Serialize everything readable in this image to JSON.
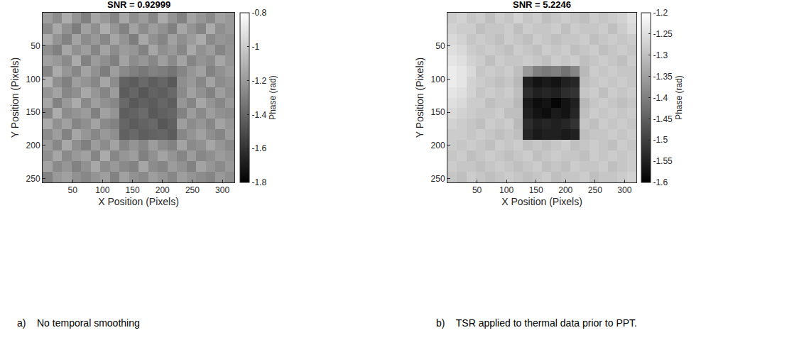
{
  "chart_data": [
    {
      "type": "heatmap",
      "title": "SNR = 0.92999",
      "caption": "a)    No temporal smoothing",
      "x_label": "X Position (Pixels)",
      "y_label": "Y Position (Pixels)",
      "colorbar_label": "Phase (rad)",
      "xlim": [
        0,
        320
      ],
      "xticks": [
        50,
        100,
        150,
        200,
        250,
        300
      ],
      "ylim": [
        256,
        0
      ],
      "yticks": [
        50,
        100,
        150,
        200,
        250
      ],
      "zlim": [
        -1.8,
        -0.8
      ],
      "zticks": [
        -1.8,
        -1.6,
        -1.4,
        -1.2,
        -1,
        -0.8
      ],
      "x": [
        8,
        24,
        40,
        56,
        72,
        88,
        104,
        120,
        136,
        152,
        168,
        184,
        200,
        216,
        232,
        248,
        264,
        280,
        296,
        312
      ],
      "y": [
        8,
        24,
        40,
        56,
        72,
        88,
        104,
        120,
        136,
        152,
        168,
        184,
        200,
        216,
        232,
        248
      ],
      "z": [
        [
          -1.18,
          -1.25,
          -1.12,
          -1.22,
          -1.3,
          -1.15,
          -1.2,
          -1.28,
          -1.14,
          -1.24,
          -1.19,
          -1.27,
          -1.13,
          -1.22,
          -1.29,
          -1.16,
          -1.21,
          -1.26,
          -1.17,
          -1.2
        ],
        [
          -1.26,
          -1.14,
          -1.23,
          -1.31,
          -1.17,
          -1.24,
          -1.12,
          -1.21,
          -1.29,
          -1.16,
          -1.25,
          -1.18,
          -1.23,
          -1.3,
          -1.15,
          -1.22,
          -1.28,
          -1.13,
          -1.24,
          -1.2
        ],
        [
          -1.12,
          -1.22,
          -1.29,
          -1.16,
          -1.25,
          -1.2,
          -1.27,
          -1.15,
          -1.22,
          -1.31,
          -1.14,
          -1.23,
          -1.28,
          -1.17,
          -1.24,
          -1.19,
          -1.13,
          -1.26,
          -1.21,
          -1.23
        ],
        [
          -1.24,
          -1.3,
          -1.15,
          -1.23,
          -1.18,
          -1.28,
          -1.16,
          -1.25,
          -1.19,
          -1.21,
          -1.29,
          -1.15,
          -1.24,
          -1.2,
          -1.27,
          -1.14,
          -1.23,
          -1.19,
          -1.28,
          -1.22
        ],
        [
          -1.17,
          -1.2,
          -1.26,
          -1.13,
          -1.29,
          -1.19,
          -1.24,
          -1.3,
          -1.16,
          -1.25,
          -1.21,
          -1.27,
          -1.18,
          -1.26,
          -1.16,
          -1.28,
          -1.22,
          -1.25,
          -1.15,
          -1.21
        ],
        [
          -1.28,
          -1.13,
          -1.21,
          -1.27,
          -1.16,
          -1.23,
          -1.31,
          -1.18,
          -1.26,
          -1.3,
          -1.33,
          -1.29,
          -1.31,
          -1.34,
          -1.28,
          -1.21,
          -1.17,
          -1.29,
          -1.23,
          -1.19
        ],
        [
          -1.1,
          -1.24,
          -1.3,
          -1.18,
          -1.22,
          -1.27,
          -1.15,
          -1.25,
          -1.41,
          -1.44,
          -1.39,
          -1.43,
          -1.4,
          -1.45,
          -1.24,
          -1.2,
          -1.27,
          -1.16,
          -1.25,
          -1.22
        ],
        [
          -1.22,
          -1.16,
          -1.27,
          -1.24,
          -1.14,
          -1.21,
          -1.28,
          -1.19,
          -1.44,
          -1.4,
          -1.46,
          -1.41,
          -1.43,
          -1.39,
          -1.26,
          -1.17,
          -1.23,
          -1.29,
          -1.18,
          -1.24
        ],
        [
          -1.15,
          -1.29,
          -1.2,
          -1.13,
          -1.26,
          -1.18,
          -1.23,
          -1.27,
          -1.39,
          -1.45,
          -1.42,
          -1.44,
          -1.4,
          -1.43,
          -1.21,
          -1.28,
          -1.15,
          -1.22,
          -1.27,
          -1.2
        ],
        [
          -1.27,
          -1.12,
          -1.25,
          -1.22,
          -1.19,
          -1.3,
          -1.17,
          -1.22,
          -1.43,
          -1.41,
          -1.38,
          -1.45,
          -1.42,
          -1.4,
          -1.29,
          -1.19,
          -1.26,
          -1.18,
          -1.23,
          -1.25
        ],
        [
          -1.13,
          -1.23,
          -1.17,
          -1.28,
          -1.24,
          -1.16,
          -1.26,
          -1.29,
          -1.4,
          -1.44,
          -1.41,
          -1.39,
          -1.46,
          -1.42,
          -1.18,
          -1.25,
          -1.21,
          -1.27,
          -1.16,
          -1.21
        ],
        [
          -1.25,
          -1.18,
          -1.29,
          -1.15,
          -1.21,
          -1.27,
          -1.2,
          -1.24,
          -1.42,
          -1.39,
          -1.43,
          -1.41,
          -1.4,
          -1.44,
          -1.27,
          -1.22,
          -1.17,
          -1.24,
          -1.28,
          -1.19
        ],
        [
          -1.19,
          -1.27,
          -1.14,
          -1.24,
          -1.3,
          -1.19,
          -1.25,
          -1.16,
          -1.28,
          -1.22,
          -1.27,
          -1.19,
          -1.25,
          -1.29,
          -1.16,
          -1.26,
          -1.23,
          -1.15,
          -1.21,
          -1.26
        ],
        [
          -1.24,
          -1.15,
          -1.26,
          -1.2,
          -1.17,
          -1.28,
          -1.13,
          -1.27,
          -1.21,
          -1.18,
          -1.3,
          -1.23,
          -1.16,
          -1.22,
          -1.28,
          -1.19,
          -1.27,
          -1.24,
          -1.19,
          -1.22
        ],
        [
          -1.16,
          -1.26,
          -1.21,
          -1.29,
          -1.23,
          -1.14,
          -1.25,
          -1.2,
          -1.26,
          -1.29,
          -1.15,
          -1.25,
          -1.28,
          -1.19,
          -1.23,
          -1.29,
          -1.16,
          -1.21,
          -1.26,
          -1.2
        ],
        [
          -1.29,
          -1.2,
          -1.17,
          -1.23,
          -1.27,
          -1.22,
          -1.18,
          -1.29,
          -1.17,
          -1.23,
          -1.26,
          -1.18,
          -1.22,
          -1.27,
          -1.18,
          -1.22,
          -1.25,
          -1.28,
          -1.2,
          -1.24
        ]
      ]
    },
    {
      "type": "heatmap",
      "title": "SNR = 5.2246",
      "caption": "b)    TSR applied to thermal data prior to PPT.",
      "x_label": "X Position (Pixels)",
      "y_label": "Y Position (Pixels)",
      "colorbar_label": "Phase (rad)",
      "xlim": [
        0,
        320
      ],
      "xticks": [
        50,
        100,
        150,
        200,
        250,
        300
      ],
      "ylim": [
        256,
        0
      ],
      "yticks": [
        50,
        100,
        150,
        200,
        250
      ],
      "zlim": [
        -1.6,
        -1.2
      ],
      "zticks": [
        -1.6,
        -1.55,
        -1.5,
        -1.45,
        -1.4,
        -1.35,
        -1.3,
        -1.25,
        -1.2
      ],
      "x": [
        8,
        24,
        40,
        56,
        72,
        88,
        104,
        120,
        136,
        152,
        168,
        184,
        200,
        216,
        232,
        248,
        264,
        280,
        296,
        312
      ],
      "y": [
        8,
        24,
        40,
        56,
        72,
        88,
        104,
        120,
        136,
        152,
        168,
        184,
        200,
        216,
        232,
        248
      ],
      "z": [
        [
          -1.28,
          -1.27,
          -1.29,
          -1.28,
          -1.3,
          -1.28,
          -1.29,
          -1.27,
          -1.29,
          -1.28,
          -1.3,
          -1.29,
          -1.28,
          -1.29,
          -1.3,
          -1.28,
          -1.29,
          -1.28,
          -1.27,
          -1.25
        ],
        [
          -1.27,
          -1.28,
          -1.28,
          -1.3,
          -1.29,
          -1.29,
          -1.28,
          -1.3,
          -1.28,
          -1.29,
          -1.29,
          -1.28,
          -1.3,
          -1.28,
          -1.29,
          -1.29,
          -1.28,
          -1.3,
          -1.28,
          -1.26
        ],
        [
          -1.26,
          -1.27,
          -1.29,
          -1.28,
          -1.29,
          -1.3,
          -1.28,
          -1.29,
          -1.3,
          -1.28,
          -1.29,
          -1.3,
          -1.29,
          -1.29,
          -1.28,
          -1.3,
          -1.29,
          -1.28,
          -1.29,
          -1.28
        ],
        [
          -1.25,
          -1.26,
          -1.28,
          -1.29,
          -1.28,
          -1.29,
          -1.3,
          -1.28,
          -1.29,
          -1.3,
          -1.28,
          -1.29,
          -1.28,
          -1.3,
          -1.29,
          -1.28,
          -1.3,
          -1.29,
          -1.28,
          -1.29
        ],
        [
          -1.24,
          -1.25,
          -1.27,
          -1.28,
          -1.3,
          -1.28,
          -1.29,
          -1.29,
          -1.28,
          -1.29,
          -1.3,
          -1.28,
          -1.29,
          -1.28,
          -1.3,
          -1.29,
          -1.28,
          -1.29,
          -1.3,
          -1.28
        ],
        [
          -1.23,
          -1.24,
          -1.26,
          -1.29,
          -1.28,
          -1.29,
          -1.28,
          -1.3,
          -1.36,
          -1.4,
          -1.41,
          -1.4,
          -1.42,
          -1.39,
          -1.31,
          -1.28,
          -1.29,
          -1.28,
          -1.29,
          -1.29
        ],
        [
          -1.23,
          -1.24,
          -1.27,
          -1.28,
          -1.29,
          -1.3,
          -1.29,
          -1.31,
          -1.55,
          -1.57,
          -1.56,
          -1.57,
          -1.55,
          -1.54,
          -1.3,
          -1.29,
          -1.28,
          -1.29,
          -1.28,
          -1.29
        ],
        [
          -1.24,
          -1.25,
          -1.27,
          -1.29,
          -1.28,
          -1.29,
          -1.28,
          -1.3,
          -1.53,
          -1.55,
          -1.54,
          -1.55,
          -1.53,
          -1.52,
          -1.29,
          -1.28,
          -1.3,
          -1.28,
          -1.29,
          -1.28
        ],
        [
          -1.25,
          -1.26,
          -1.28,
          -1.28,
          -1.3,
          -1.29,
          -1.29,
          -1.31,
          -1.56,
          -1.58,
          -1.57,
          -1.59,
          -1.57,
          -1.55,
          -1.31,
          -1.29,
          -1.28,
          -1.29,
          -1.3,
          -1.29
        ],
        [
          -1.26,
          -1.27,
          -1.28,
          -1.29,
          -1.29,
          -1.28,
          -1.3,
          -1.3,
          -1.55,
          -1.57,
          -1.58,
          -1.56,
          -1.57,
          -1.54,
          -1.3,
          -1.28,
          -1.29,
          -1.28,
          -1.29,
          -1.28
        ],
        [
          -1.27,
          -1.28,
          -1.29,
          -1.3,
          -1.28,
          -1.29,
          -1.28,
          -1.31,
          -1.53,
          -1.55,
          -1.54,
          -1.55,
          -1.54,
          -1.52,
          -1.29,
          -1.3,
          -1.28,
          -1.29,
          -1.28,
          -1.29
        ],
        [
          -1.28,
          -1.28,
          -1.29,
          -1.28,
          -1.29,
          -1.3,
          -1.29,
          -1.3,
          -1.54,
          -1.56,
          -1.55,
          -1.55,
          -1.56,
          -1.55,
          -1.3,
          -1.29,
          -1.29,
          -1.28,
          -1.29,
          -1.28
        ],
        [
          -1.28,
          -1.29,
          -1.28,
          -1.29,
          -1.3,
          -1.28,
          -1.29,
          -1.28,
          -1.3,
          -1.29,
          -1.3,
          -1.29,
          -1.28,
          -1.3,
          -1.29,
          -1.28,
          -1.29,
          -1.3,
          -1.28,
          -1.29
        ],
        [
          -1.29,
          -1.28,
          -1.3,
          -1.29,
          -1.28,
          -1.29,
          -1.3,
          -1.29,
          -1.28,
          -1.3,
          -1.29,
          -1.28,
          -1.29,
          -1.29,
          -1.3,
          -1.28,
          -1.29,
          -1.28,
          -1.29,
          -1.28
        ],
        [
          -1.28,
          -1.29,
          -1.29,
          -1.3,
          -1.29,
          -1.28,
          -1.29,
          -1.3,
          -1.29,
          -1.28,
          -1.3,
          -1.29,
          -1.3,
          -1.28,
          -1.29,
          -1.29,
          -1.28,
          -1.3,
          -1.29,
          -1.28
        ],
        [
          -1.29,
          -1.3,
          -1.28,
          -1.29,
          -1.3,
          -1.29,
          -1.28,
          -1.29,
          -1.3,
          -1.29,
          -1.28,
          -1.3,
          -1.29,
          -1.29,
          -1.28,
          -1.3,
          -1.29,
          -1.29,
          -1.28,
          -1.27
        ]
      ]
    }
  ]
}
